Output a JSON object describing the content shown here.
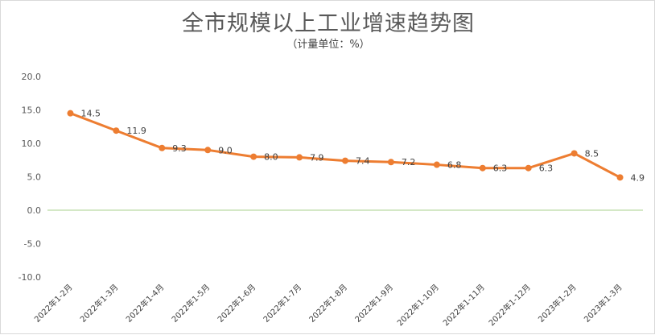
{
  "chart_data": {
    "type": "line",
    "title": "全市规模以上工业增速趋势图",
    "subtitle": "（计量单位：%）",
    "categories": [
      "2022年1-2月",
      "2022年1-3月",
      "2022年1-4月",
      "2022年1-5月",
      "2022年1-6月",
      "2022年1-7月",
      "2022年1-8月",
      "2022年1-9月",
      "2022年1-10月",
      "2022年1-11月",
      "2022年1-12月",
      "2023年1-2月",
      "2023年1-3月"
    ],
    "series": [
      {
        "values": [
          14.5,
          11.9,
          9.3,
          9.0,
          8.0,
          7.9,
          7.4,
          7.2,
          6.8,
          6.3,
          6.3,
          8.5,
          4.9
        ],
        "color": "#ED7D31"
      }
    ],
    "data_labels": [
      "14.5",
      "11.9",
      "9.3",
      "9.0",
      "8.0",
      "7.9",
      "7.4",
      "7.2",
      "6.8",
      "6.3",
      "6.3",
      "8.5",
      "4.9"
    ],
    "yticks": [
      "20.0",
      "15.0",
      "10.0",
      "5.0",
      "0.0",
      "-5.0",
      "-10.0"
    ],
    "ylim": [
      -10,
      20
    ],
    "zero_line_color": "#A9D18E",
    "grid": false,
    "legend": "none"
  }
}
